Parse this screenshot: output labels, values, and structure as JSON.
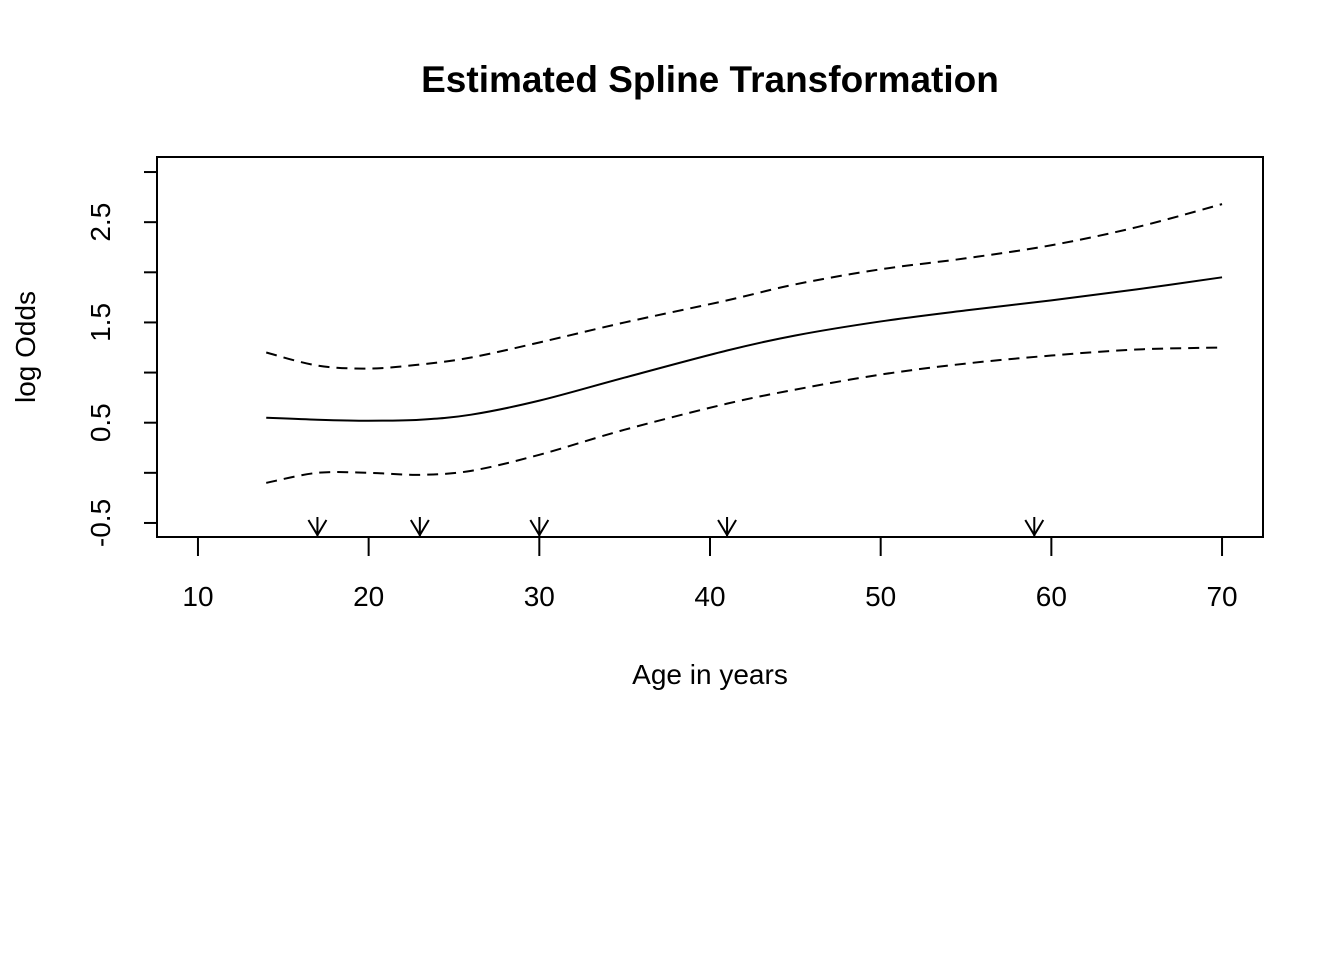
{
  "chart_data": {
    "type": "line",
    "title": "Estimated Spline Transformation",
    "xlabel": "Age in years",
    "ylabel": "log Odds",
    "xlim": [
      7.6,
      72.4
    ],
    "ylim": [
      -0.64,
      3.15
    ],
    "x_ticks": [
      10,
      20,
      30,
      40,
      50,
      60,
      70
    ],
    "x_tick_labels": [
      "10",
      "20",
      "30",
      "40",
      "50",
      "60",
      "70"
    ],
    "y_ticks": [
      -0.5,
      0,
      0.5,
      1,
      1.5,
      2,
      2.5,
      3
    ],
    "y_tick_labels": [
      "-0.5",
      "",
      "0.5",
      "",
      "1.5",
      "",
      "2.5",
      ""
    ],
    "grid": false,
    "legend": "none",
    "knots": [
      17,
      23,
      30,
      41,
      59
    ],
    "series": [
      {
        "style": "solid",
        "x": [
          14,
          17,
          20,
          23,
          26,
          30,
          35,
          41,
          45,
          50,
          55,
          60,
          65,
          70
        ],
        "y": [
          0.55,
          0.53,
          0.52,
          0.53,
          0.58,
          0.72,
          0.95,
          1.22,
          1.37,
          1.51,
          1.62,
          1.72,
          1.83,
          1.95
        ]
      },
      {
        "style": "dashed",
        "x": [
          14,
          17,
          20,
          23,
          26,
          30,
          35,
          41,
          45,
          50,
          55,
          60,
          65,
          70
        ],
        "y": [
          1.2,
          1.07,
          1.04,
          1.08,
          1.15,
          1.3,
          1.5,
          1.72,
          1.88,
          2.03,
          2.14,
          2.27,
          2.45,
          2.68
        ]
      },
      {
        "style": "dashed",
        "x": [
          14,
          17,
          20,
          23,
          26,
          30,
          35,
          41,
          45,
          50,
          55,
          60,
          65,
          70
        ],
        "y": [
          -0.1,
          -0.0,
          0.0,
          -0.02,
          0.02,
          0.18,
          0.43,
          0.69,
          0.83,
          0.98,
          1.09,
          1.17,
          1.23,
          1.25
        ]
      }
    ]
  }
}
